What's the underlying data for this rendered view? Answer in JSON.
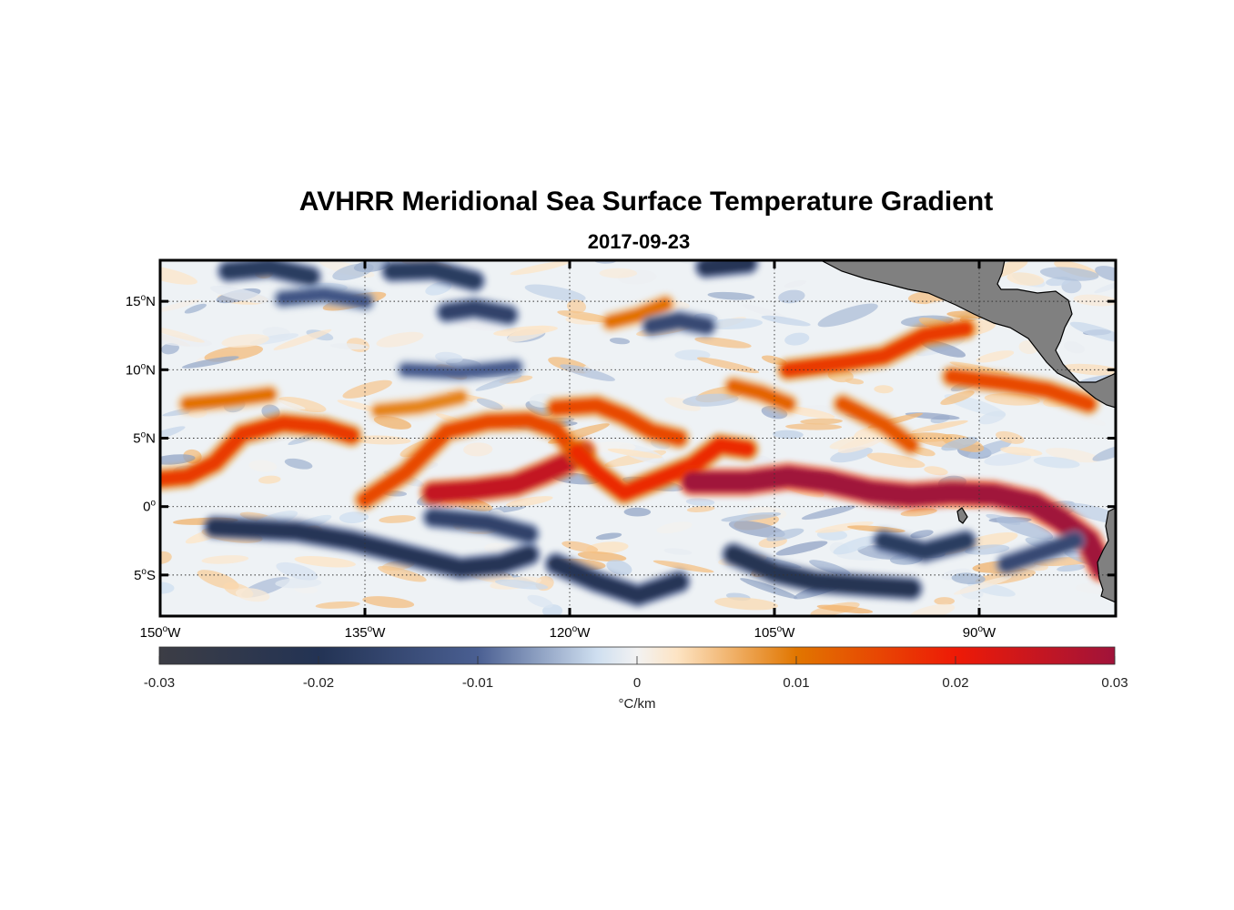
{
  "title": "AVHRR Meridional Sea Surface Temperature Gradient",
  "subtitle": "2017-09-23",
  "map": {
    "lon_range": [
      -150,
      -80
    ],
    "lat_range": [
      -8,
      18
    ],
    "lat_ticks": [
      {
        "value": 15,
        "num": "15",
        "hemi": "N"
      },
      {
        "value": 10,
        "num": "10",
        "hemi": "N"
      },
      {
        "value": 5,
        "num": "5",
        "hemi": "N"
      },
      {
        "value": 0,
        "num": "0",
        "hemi": ""
      },
      {
        "value": -5,
        "num": "5",
        "hemi": "S"
      }
    ],
    "lon_ticks": [
      {
        "value": -150,
        "num": "150",
        "hemi": "W"
      },
      {
        "value": -135,
        "num": "135",
        "hemi": "W"
      },
      {
        "value": -120,
        "num": "120",
        "hemi": "W"
      },
      {
        "value": -105,
        "num": "105",
        "hemi": "W"
      },
      {
        "value": -90,
        "num": "90",
        "hemi": "W"
      }
    ],
    "land_color": "#808080",
    "fronts": [
      {
        "sign": "pos",
        "strength": 0.55,
        "points": [
          [
            -150,
            2
          ],
          [
            -148,
            2.2
          ],
          [
            -146,
            3.2
          ],
          [
            -144,
            5.3
          ],
          [
            -141,
            6.1
          ],
          [
            -138,
            5.8
          ],
          [
            -136,
            5.2
          ]
        ]
      },
      {
        "sign": "pos",
        "strength": 0.5,
        "points": [
          [
            -135,
            0.5
          ],
          [
            -132,
            2.5
          ],
          [
            -129,
            5.5
          ],
          [
            -126,
            6.2
          ],
          [
            -123,
            6.3
          ],
          [
            -121,
            5.6
          ],
          [
            -119.5,
            3.8
          ]
        ]
      },
      {
        "sign": "pos",
        "strength": 0.85,
        "points": [
          [
            -130,
            1
          ],
          [
            -127,
            1.2
          ],
          [
            -124,
            1.6
          ],
          [
            -122,
            2.4
          ],
          [
            -120,
            3.3
          ],
          [
            -119,
            4
          ]
        ]
      },
      {
        "sign": "pos",
        "strength": 0.6,
        "points": [
          [
            -119.5,
            4
          ],
          [
            -118,
            2.5
          ],
          [
            -116,
            1
          ],
          [
            -113,
            2.2
          ],
          [
            -111,
            3
          ],
          [
            -109,
            4.5
          ],
          [
            -107,
            4.2
          ]
        ]
      },
      {
        "sign": "pos",
        "strength": 0.5,
        "points": [
          [
            -121,
            7.2
          ],
          [
            -118,
            7.4
          ],
          [
            -116,
            6.6
          ],
          [
            -114,
            5.5
          ],
          [
            -112,
            5
          ]
        ]
      },
      {
        "sign": "pos",
        "strength": 1.0,
        "points": [
          [
            -111,
            1.8
          ],
          [
            -107,
            1.8
          ],
          [
            -104,
            2.2
          ],
          [
            -101,
            1.8
          ],
          [
            -98,
            1.1
          ],
          [
            -95,
            0.8
          ],
          [
            -92,
            1.0
          ],
          [
            -89,
            0.9
          ],
          [
            -86,
            0.2
          ],
          [
            -84,
            -1.0
          ],
          [
            -82,
            -2.5
          ],
          [
            -81,
            -4.5
          ]
        ]
      },
      {
        "sign": "pos",
        "strength": 0.55,
        "points": [
          [
            -104,
            10
          ],
          [
            -100,
            10.5
          ],
          [
            -97,
            11
          ],
          [
            -94,
            12.5
          ],
          [
            -91,
            13
          ]
        ]
      },
      {
        "sign": "pos",
        "strength": 0.5,
        "points": [
          [
            -92,
            9.5
          ],
          [
            -88,
            9
          ],
          [
            -85,
            8.5
          ],
          [
            -82,
            7.5
          ]
        ]
      },
      {
        "sign": "pos",
        "strength": 0.45,
        "points": [
          [
            -100,
            7.5
          ],
          [
            -97,
            6
          ],
          [
            -95,
            4.5
          ]
        ]
      },
      {
        "sign": "pos",
        "strength": 0.4,
        "points": [
          [
            -108,
            8.8
          ],
          [
            -106,
            8.3
          ],
          [
            -104,
            7.5
          ]
        ]
      },
      {
        "sign": "pos",
        "strength": 0.35,
        "points": [
          [
            -148,
            7.5
          ],
          [
            -145,
            7.8
          ],
          [
            -142,
            8.2
          ]
        ]
      },
      {
        "sign": "pos",
        "strength": 0.35,
        "points": [
          [
            -117,
            13.5
          ],
          [
            -115,
            14
          ],
          [
            -113,
            14.8
          ]
        ]
      },
      {
        "sign": "pos",
        "strength": 0.3,
        "points": [
          [
            -134,
            7
          ],
          [
            -131,
            7.3
          ],
          [
            -128,
            8
          ]
        ]
      },
      {
        "sign": "neg",
        "strength": 0.65,
        "points": [
          [
            -146,
            -1.5
          ],
          [
            -140,
            -1.8
          ],
          [
            -136,
            -2.5
          ],
          [
            -132,
            -3.5
          ],
          [
            -128,
            -4.5
          ],
          [
            -125,
            -4.2
          ],
          [
            -123,
            -3.5
          ]
        ]
      },
      {
        "sign": "neg",
        "strength": 0.55,
        "points": [
          [
            -130,
            -0.8
          ],
          [
            -126,
            -1.2
          ],
          [
            -123,
            -2.0
          ]
        ]
      },
      {
        "sign": "neg",
        "strength": 0.65,
        "points": [
          [
            -121,
            -4.2
          ],
          [
            -118,
            -5.5
          ],
          [
            -115,
            -6.5
          ],
          [
            -112,
            -5.5
          ]
        ]
      },
      {
        "sign": "neg",
        "strength": 0.7,
        "points": [
          [
            -108,
            -3.5
          ],
          [
            -105,
            -4.8
          ],
          [
            -102,
            -5.5
          ],
          [
            -98,
            -5.8
          ],
          [
            -95,
            -6
          ]
        ]
      },
      {
        "sign": "neg",
        "strength": 0.6,
        "points": [
          [
            -97,
            -2.5
          ],
          [
            -94,
            -3.3
          ],
          [
            -91,
            -2.5
          ]
        ]
      },
      {
        "sign": "neg",
        "strength": 0.5,
        "points": [
          [
            -88,
            -4.2
          ],
          [
            -85,
            -3.2
          ],
          [
            -83,
            -2.5
          ]
        ]
      },
      {
        "sign": "neg",
        "strength": 0.6,
        "points": [
          [
            -145,
            17.2
          ],
          [
            -142,
            17.5
          ],
          [
            -139,
            16.8
          ]
        ]
      },
      {
        "sign": "neg",
        "strength": 0.6,
        "points": [
          [
            -133,
            17.2
          ],
          [
            -130,
            17.3
          ],
          [
            -127,
            16.5
          ]
        ]
      },
      {
        "sign": "neg",
        "strength": 0.55,
        "points": [
          [
            -129,
            14.2
          ],
          [
            -127,
            14.5
          ],
          [
            -124.5,
            14
          ]
        ]
      },
      {
        "sign": "neg",
        "strength": 0.65,
        "points": [
          [
            -110,
            17.5
          ],
          [
            -107,
            17.8
          ]
        ]
      },
      {
        "sign": "neg",
        "strength": 0.5,
        "points": [
          [
            -114,
            13.2
          ],
          [
            -112,
            13.6
          ],
          [
            -110,
            13.2
          ]
        ]
      },
      {
        "sign": "neg",
        "strength": 0.35,
        "points": [
          [
            -132,
            10
          ],
          [
            -128,
            9.8
          ],
          [
            -124,
            10.2
          ]
        ]
      },
      {
        "sign": "neg",
        "strength": 0.4,
        "points": [
          [
            -141,
            15.2
          ],
          [
            -138,
            15.5
          ],
          [
            -135,
            15
          ]
        ]
      }
    ]
  },
  "colorbar": {
    "min": -0.03,
    "max": 0.03,
    "ticks": [
      "-0.03",
      "-0.02",
      "-0.01",
      "0",
      "0.01",
      "0.02",
      "0.03"
    ],
    "unit": "°C/km",
    "stops": [
      {
        "v": -0.03,
        "color": "#3c3d45"
      },
      {
        "v": -0.02,
        "color": "#233354"
      },
      {
        "v": -0.01,
        "color": "#4a5f92"
      },
      {
        "v": -0.0025,
        "color": "#cfdff0"
      },
      {
        "v": 0,
        "color": "#f2f2f2"
      },
      {
        "v": 0.0025,
        "color": "#fde4c4"
      },
      {
        "v": 0.01,
        "color": "#e17600"
      },
      {
        "v": 0.02,
        "color": "#ee1a06"
      },
      {
        "v": 0.03,
        "color": "#a0133a"
      }
    ]
  }
}
